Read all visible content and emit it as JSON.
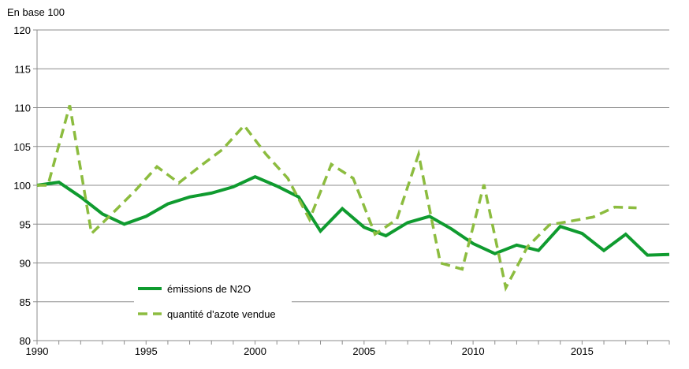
{
  "chart_data": {
    "type": "line",
    "ylabel": "En base 100",
    "xlim": [
      1990,
      2019
    ],
    "ylim": [
      80,
      120
    ],
    "x_ticks": [
      "1990",
      "1995",
      "2000",
      "2005",
      "2010",
      "2015"
    ],
    "y_ticks": [
      "80",
      "85",
      "90",
      "95",
      "100",
      "105",
      "110",
      "115",
      "120"
    ],
    "grid": true,
    "legend_position": "bottom-left",
    "series": [
      {
        "name": "émissions de N2O",
        "color": "#0f9b2f",
        "style": "solid",
        "x": [
          1990,
          1991,
          1992,
          1993,
          1994,
          1995,
          1996,
          1997,
          1998,
          1999,
          2000,
          2001,
          2002,
          2003,
          2004,
          2005,
          2006,
          2007,
          2008,
          2009,
          2010,
          2011,
          2012,
          2013,
          2014,
          2015,
          2016,
          2017,
          2018,
          2019
        ],
        "values": [
          100.0,
          100.4,
          98.5,
          96.3,
          95.0,
          96.0,
          97.6,
          98.5,
          99.0,
          99.8,
          101.1,
          99.9,
          98.5,
          94.1,
          97.0,
          94.6,
          93.5,
          95.2,
          96.0,
          94.4,
          92.5,
          91.2,
          92.3,
          91.6,
          94.7,
          93.8,
          91.6,
          93.7,
          91.0,
          91.1
        ]
      },
      {
        "name": "quantité d'azote vendue",
        "color": "#8cbc3f",
        "style": "dashed",
        "x": [
          1990,
          1990.5,
          1991.5,
          1992.5,
          1993.5,
          1994.5,
          1995.5,
          1996.5,
          1997.5,
          1998.5,
          1999.5,
          2000.5,
          2001.5,
          2002.5,
          2003.5,
          2004.5,
          2005.5,
          2006.5,
          2007.5,
          2008.5,
          2009.5,
          2010.5,
          2011.5,
          2012.5,
          2013.5,
          2014.5,
          2015.5,
          2016.5,
          2017.5
        ],
        "values": [
          100.0,
          100.0,
          110.3,
          93.8,
          96.5,
          99.3,
          102.4,
          100.3,
          102.5,
          104.6,
          107.7,
          104.0,
          100.9,
          95.6,
          102.7,
          100.9,
          93.7,
          95.6,
          104.0,
          90.0,
          89.2,
          100.1,
          86.8,
          92.1,
          94.9,
          95.4,
          95.9,
          97.2,
          97.1
        ]
      }
    ]
  }
}
